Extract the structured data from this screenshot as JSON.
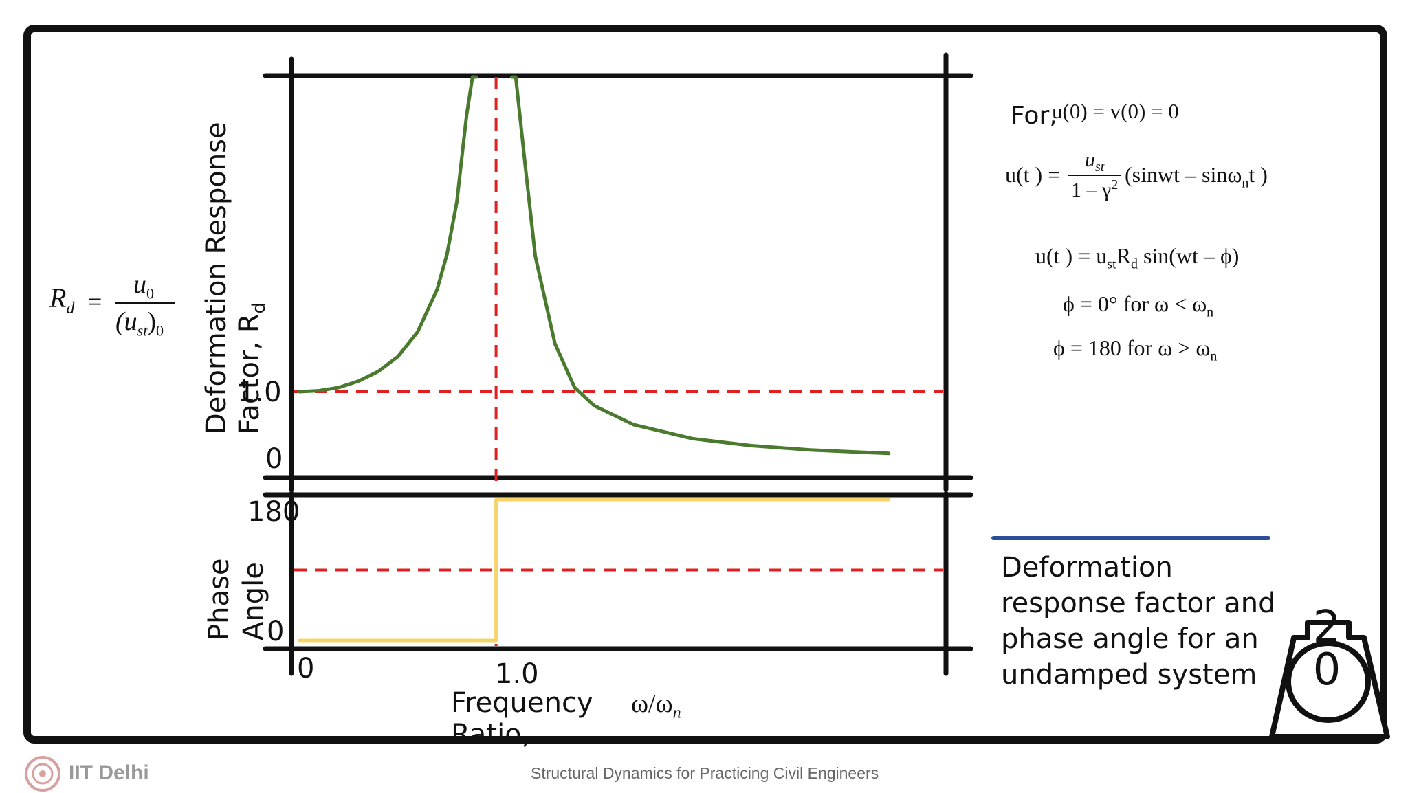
{
  "footer": {
    "org": "IIT Delhi",
    "course": "Structural Dynamics for Practicing Civil Engineers"
  },
  "definition": {
    "lhs": "R",
    "lhs_sub": "d",
    "numerator": "u",
    "numerator_sub": "0",
    "denominator": "(u",
    "denominator_sub": "st",
    "denominator_close": ")",
    "denominator_close_sub": "0"
  },
  "equations": {
    "condition_prefix": "For,",
    "condition": "u(0) = v(0) = 0",
    "eq1_lhs": "u(t ) =",
    "eq1_num": "u",
    "eq1_num_sub": "st",
    "eq1_den": "1 – γ",
    "eq1_den_sup": "2",
    "eq1_rhs": "(sinwt – sinω",
    "eq1_rhs_sub": "n",
    "eq1_rhs_end": "t )",
    "eq2": "u(t ) = u",
    "eq2_sub1": "st",
    "eq2_mid": "R",
    "eq2_sub2": "d",
    "eq2_end": " sin(wt – ϕ)",
    "eq3": "ϕ = 0° for ω < ω",
    "eq3_sub": "n",
    "eq4": "ϕ = 180 for ω > ω",
    "eq4_sub": "n"
  },
  "caption": [
    "Deformation",
    "response factor and",
    "phase angle for an",
    "undamped system"
  ],
  "page_badge": "20",
  "chart_data": [
    {
      "type": "line",
      "panel": "top",
      "ylabel_line1": "Deformation Response",
      "ylabel_line2": "Factor, R",
      "ylabel_sub": "d",
      "xlim": [
        0,
        3
      ],
      "ylim": [
        0,
        4
      ],
      "yticks": [
        "0",
        "1.0"
      ],
      "ytick_values": [
        0,
        1
      ],
      "reference_lines": {
        "x": 1.0,
        "y": 1.0,
        "style": "dashed",
        "color": "#e02020"
      },
      "series": [
        {
          "color": "#4a7a2e",
          "x": [
            0,
            0.1,
            0.2,
            0.3,
            0.4,
            0.5,
            0.6,
            0.7,
            0.75,
            0.8,
            0.85,
            0.88,
            0.9
          ],
          "y": [
            1.0,
            1.01,
            1.04,
            1.1,
            1.19,
            1.33,
            1.56,
            1.96,
            2.29,
            2.78,
            3.6,
            4.0,
            4.0
          ]
        },
        {
          "color": "#4a7a2e",
          "x": [
            1.08,
            1.1,
            1.15,
            1.2,
            1.3,
            1.4,
            1.5,
            1.7,
            2.0,
            2.3,
            2.6,
            3.0
          ],
          "y": [
            4.0,
            4.0,
            3.1,
            2.27,
            1.45,
            1.04,
            0.8,
            0.53,
            0.33,
            0.23,
            0.17,
            0.12
          ]
        }
      ]
    },
    {
      "type": "line",
      "panel": "bottom",
      "ylabel_line1": "Phase",
      "ylabel_line2": "Angle",
      "xlabel_line1": "Frequency",
      "xlabel_line2": "Ratio,",
      "xlabel_symbol": "ω/ω",
      "xlabel_symbol_sub": "n",
      "xlim": [
        0,
        3
      ],
      "ylim": [
        0,
        180
      ],
      "yticks": [
        "0",
        "180"
      ],
      "ytick_values": [
        0,
        180
      ],
      "xticks": [
        "0",
        "1.0"
      ],
      "xtick_values": [
        0,
        1
      ],
      "reference_lines": {
        "x": 1.0,
        "y": 90,
        "style": "dashed",
        "color": "#e02020"
      },
      "series": [
        {
          "color": "#f5d56a",
          "x": [
            0,
            1.0,
            1.0,
            3.0
          ],
          "y": [
            0,
            0,
            180,
            180
          ]
        }
      ]
    }
  ]
}
